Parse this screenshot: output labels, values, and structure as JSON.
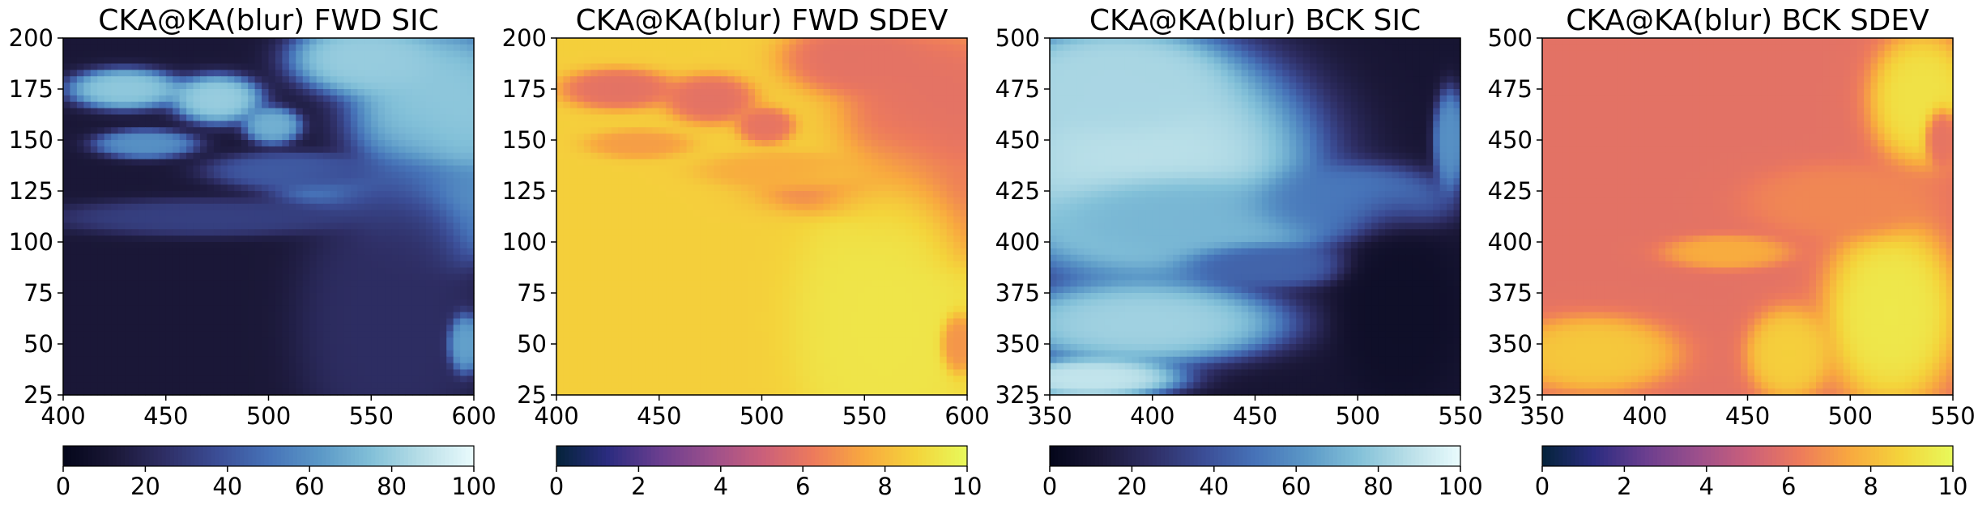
{
  "chart_data": [
    {
      "type": "heatmap",
      "title": "CKA@KA(blur) FWD SIC",
      "xlim": [
        400,
        600
      ],
      "ylim": [
        25,
        200
      ],
      "xticks": [
        400,
        450,
        500,
        550,
        600
      ],
      "yticks": [
        25,
        50,
        75,
        100,
        125,
        150,
        175,
        200
      ],
      "colormap": "ice",
      "colorbar": {
        "range": [
          0,
          100
        ],
        "ticks": [
          0,
          20,
          40,
          60,
          80,
          100
        ]
      },
      "field": {
        "base": 12,
        "regions": [
          {
            "cx": 585,
            "cy": 165,
            "rx": 45,
            "ry": 42,
            "v": 78
          },
          {
            "cx": 545,
            "cy": 190,
            "rx": 35,
            "ry": 18,
            "v": 80
          },
          {
            "cx": 560,
            "cy": 125,
            "rx": 55,
            "ry": 14,
            "v": 62
          },
          {
            "cx": 578,
            "cy": 105,
            "rx": 30,
            "ry": 22,
            "v": 72
          },
          {
            "cx": 430,
            "cy": 175,
            "rx": 28,
            "ry": 10,
            "v": 78
          },
          {
            "cx": 475,
            "cy": 170,
            "rx": 22,
            "ry": 12,
            "v": 80
          },
          {
            "cx": 502,
            "cy": 157,
            "rx": 14,
            "ry": 9,
            "v": 70
          },
          {
            "cx": 440,
            "cy": 148,
            "rx": 25,
            "ry": 7,
            "v": 60
          },
          {
            "cx": 510,
            "cy": 135,
            "rx": 40,
            "ry": 9,
            "v": 42
          },
          {
            "cx": 560,
            "cy": 60,
            "rx": 45,
            "ry": 70,
            "v": 24
          },
          {
            "cx": 596,
            "cy": 50,
            "rx": 8,
            "ry": 14,
            "v": 65
          },
          {
            "cx": 470,
            "cy": 112,
            "rx": 75,
            "ry": 9,
            "v": 32
          }
        ]
      }
    },
    {
      "type": "heatmap",
      "title": "CKA@KA(blur) FWD SDEV",
      "xlim": [
        400,
        600
      ],
      "ylim": [
        25,
        200
      ],
      "xticks": [
        400,
        450,
        500,
        550,
        600
      ],
      "yticks": [
        25,
        50,
        75,
        100,
        125,
        150,
        175,
        200
      ],
      "colormap": "thermal",
      "colorbar": {
        "range": [
          0,
          10
        ],
        "ticks": [
          0,
          2,
          4,
          6,
          8,
          10
        ]
      },
      "field": {
        "base": 8.6,
        "regions": [
          {
            "cx": 585,
            "cy": 165,
            "rx": 45,
            "ry": 42,
            "v": 5.9
          },
          {
            "cx": 545,
            "cy": 190,
            "rx": 35,
            "ry": 18,
            "v": 5.9
          },
          {
            "cx": 560,
            "cy": 125,
            "rx": 55,
            "ry": 14,
            "v": 6.0
          },
          {
            "cx": 578,
            "cy": 105,
            "rx": 30,
            "ry": 22,
            "v": 5.9
          },
          {
            "cx": 430,
            "cy": 175,
            "rx": 28,
            "ry": 10,
            "v": 5.9
          },
          {
            "cx": 475,
            "cy": 170,
            "rx": 22,
            "ry": 12,
            "v": 5.9
          },
          {
            "cx": 502,
            "cy": 157,
            "rx": 14,
            "ry": 9,
            "v": 6.0
          },
          {
            "cx": 440,
            "cy": 148,
            "rx": 25,
            "ry": 7,
            "v": 7.2
          },
          {
            "cx": 510,
            "cy": 135,
            "rx": 40,
            "ry": 9,
            "v": 7.6
          },
          {
            "cx": 560,
            "cy": 60,
            "rx": 45,
            "ry": 70,
            "v": 9.3
          },
          {
            "cx": 596,
            "cy": 50,
            "rx": 8,
            "ry": 14,
            "v": 7.0
          }
        ]
      }
    },
    {
      "type": "heatmap",
      "title": "CKA@KA(blur) BCK SIC",
      "xlim": [
        350,
        550
      ],
      "ylim": [
        325,
        500
      ],
      "xticks": [
        350,
        400,
        450,
        500,
        550
      ],
      "yticks": [
        325,
        350,
        375,
        400,
        425,
        450,
        475,
        500
      ],
      "colormap": "ice",
      "colorbar": {
        "range": [
          0,
          100
        ],
        "ticks": [
          0,
          20,
          40,
          60,
          80,
          100
        ]
      },
      "field": {
        "base": 10,
        "regions": [
          {
            "cx": 395,
            "cy": 440,
            "rx": 85,
            "ry": 60,
            "v": 88
          },
          {
            "cx": 380,
            "cy": 480,
            "rx": 55,
            "ry": 25,
            "v": 84
          },
          {
            "cx": 420,
            "cy": 410,
            "rx": 70,
            "ry": 20,
            "v": 72
          },
          {
            "cx": 395,
            "cy": 360,
            "rx": 70,
            "ry": 20,
            "v": 82
          },
          {
            "cx": 370,
            "cy": 333,
            "rx": 45,
            "ry": 10,
            "v": 90
          },
          {
            "cx": 500,
            "cy": 420,
            "rx": 45,
            "ry": 18,
            "v": 52
          },
          {
            "cx": 458,
            "cy": 388,
            "rx": 40,
            "ry": 10,
            "v": 45
          },
          {
            "cx": 545,
            "cy": 450,
            "rx": 8,
            "ry": 25,
            "v": 60
          },
          {
            "cx": 520,
            "cy": 365,
            "rx": 30,
            "ry": 45,
            "v": 6
          }
        ]
      }
    },
    {
      "type": "heatmap",
      "title": "CKA@KA(blur) BCK SDEV",
      "xlim": [
        350,
        550
      ],
      "ylim": [
        325,
        500
      ],
      "xticks": [
        350,
        400,
        450,
        500,
        550
      ],
      "yticks": [
        325,
        350,
        375,
        400,
        425,
        450,
        475,
        500
      ],
      "colormap": "thermal",
      "colorbar": {
        "range": [
          0,
          10
        ],
        "ticks": [
          0,
          2,
          4,
          6,
          8,
          10
        ]
      },
      "field": {
        "base": 5.9,
        "regions": [
          {
            "cx": 520,
            "cy": 365,
            "rx": 32,
            "ry": 45,
            "v": 9.4
          },
          {
            "cx": 535,
            "cy": 470,
            "rx": 25,
            "ry": 32,
            "v": 9.2
          },
          {
            "cx": 470,
            "cy": 345,
            "rx": 20,
            "ry": 22,
            "v": 8.6
          },
          {
            "cx": 495,
            "cy": 420,
            "rx": 45,
            "ry": 18,
            "v": 6.6
          },
          {
            "cx": 440,
            "cy": 395,
            "rx": 30,
            "ry": 8,
            "v": 7.6
          },
          {
            "cx": 545,
            "cy": 450,
            "rx": 8,
            "ry": 14,
            "v": 6.0
          },
          {
            "cx": 375,
            "cy": 345,
            "rx": 40,
            "ry": 18,
            "v": 8.4
          }
        ]
      }
    }
  ]
}
